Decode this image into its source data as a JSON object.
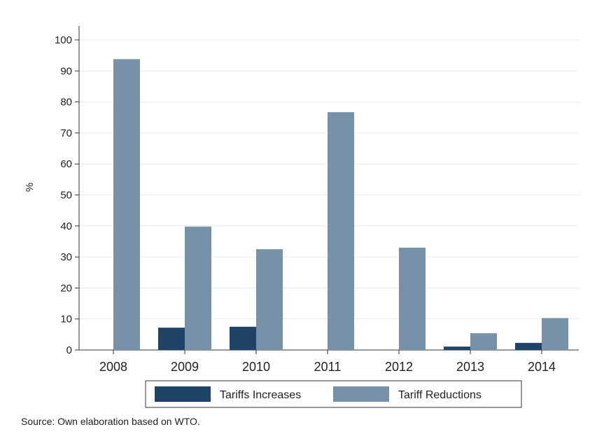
{
  "chart_data": {
    "type": "bar",
    "categories": [
      "2008",
      "2009",
      "2010",
      "2011",
      "2012",
      "2013",
      "2014"
    ],
    "series": [
      {
        "name": "Tariffs Increases",
        "color": "#1f4468",
        "values": [
          0,
          7.2,
          7.5,
          0,
          0,
          1.1,
          2.3
        ]
      },
      {
        "name": "Tariff Reductions",
        "color": "#7791a9",
        "values": [
          93.8,
          39.8,
          32.5,
          76.7,
          33.0,
          5.4,
          10.3
        ]
      }
    ],
    "title": "",
    "xlabel": "",
    "ylabel": "%",
    "ylim": [
      0,
      100
    ],
    "yticks": [
      0,
      10,
      20,
      30,
      40,
      50,
      60,
      70,
      80,
      90,
      100
    ],
    "grid": true,
    "legend_position": "bottom"
  },
  "source_note": "Source: Own elaboration based on WTO."
}
